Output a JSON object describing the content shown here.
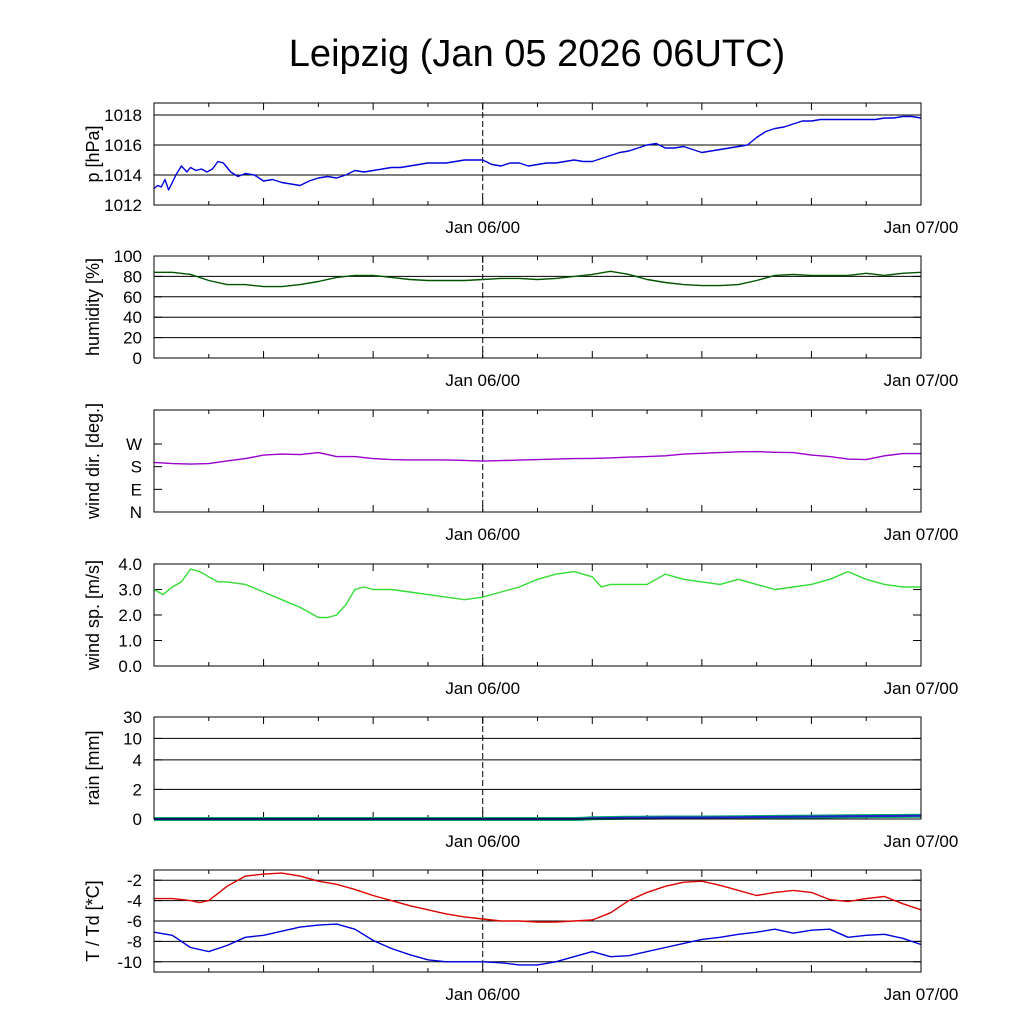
{
  "title": "Leipzig (Jan 05 2026 06UTC)",
  "chart_data": [
    {
      "type": "line",
      "ylabel": "p [hPa]",
      "ylim": [
        1012,
        1018.8
      ],
      "yticks": [
        1012,
        1014,
        1016,
        1018
      ],
      "ytick_labels": [
        "1012",
        "1014",
        "1016",
        "1018"
      ],
      "grid_y": [
        1012,
        1014,
        1016,
        1018
      ],
      "xlim": [
        0,
        42
      ],
      "xtick_labels": [
        "Jan 06/00",
        "Jan 07/00"
      ],
      "xtick_hours": [
        18,
        42
      ],
      "series": [
        {
          "color": "#0000dd",
          "x": [
            0,
            0.2,
            0.4,
            0.6,
            0.8,
            1,
            1.2,
            1.5,
            1.8,
            2,
            2.3,
            2.6,
            2.9,
            3.2,
            3.5,
            3.8,
            4.2,
            4.6,
            5,
            5.5,
            6,
            6.5,
            7,
            7.5,
            8,
            8.5,
            9,
            9.5,
            10,
            10.5,
            11,
            11.5,
            12,
            12.5,
            13,
            13.5,
            14,
            14.5,
            15,
            15.5,
            16,
            16.5,
            17,
            17.5,
            18,
            18.5,
            19,
            19.5,
            20,
            20.5,
            21,
            21.5,
            22,
            22.5,
            23,
            23.5,
            24,
            24.5,
            25,
            25.5,
            26,
            26.5,
            27,
            27.5,
            28,
            28.5,
            29,
            29.5,
            30,
            30.5,
            31,
            31.5,
            32,
            32.5,
            33,
            33.5,
            34,
            34.5,
            35,
            35.5,
            36,
            36.5,
            37,
            37.5,
            38,
            38.5,
            39,
            39.5,
            40,
            40.5,
            41,
            41.5,
            42
          ],
          "y": [
            1013.1,
            1013.3,
            1013.2,
            1013.7,
            1013.0,
            1013.5,
            1014.0,
            1014.6,
            1014.2,
            1014.5,
            1014.3,
            1014.4,
            1014.2,
            1014.4,
            1014.9,
            1014.8,
            1014.2,
            1013.9,
            1014.1,
            1014.0,
            1013.6,
            1013.7,
            1013.5,
            1013.4,
            1013.3,
            1013.6,
            1013.8,
            1013.9,
            1013.8,
            1014.0,
            1014.3,
            1014.2,
            1014.3,
            1014.4,
            1014.5,
            1014.5,
            1014.6,
            1014.7,
            1014.8,
            1014.8,
            1014.8,
            1014.9,
            1015.0,
            1015.0,
            1015.0,
            1014.7,
            1014.6,
            1014.8,
            1014.8,
            1014.6,
            1014.7,
            1014.8,
            1014.8,
            1014.9,
            1015.0,
            1014.9,
            1014.9,
            1015.1,
            1015.3,
            1015.5,
            1015.6,
            1015.8,
            1016.0,
            1016.1,
            1015.8,
            1015.8,
            1015.9,
            1015.7,
            1015.5,
            1015.6,
            1015.7,
            1015.8,
            1015.9,
            1016.0,
            1016.5,
            1016.9,
            1017.1,
            1017.2,
            1017.4,
            1017.6,
            1017.6,
            1017.7,
            1017.7,
            1017.7,
            1017.7,
            1017.7,
            1017.7,
            1017.7,
            1017.8,
            1017.8,
            1017.9,
            1017.9,
            1017.8
          ]
        }
      ]
    },
    {
      "type": "line",
      "ylabel": "humidity [%]",
      "ylim": [
        0,
        100
      ],
      "yticks": [
        0,
        20,
        40,
        60,
        80,
        100
      ],
      "ytick_labels": [
        "0",
        "20",
        "40",
        "60",
        "80",
        "100"
      ],
      "grid_y": [
        20,
        40,
        60,
        80
      ],
      "xlim": [
        0,
        42
      ],
      "xtick_labels": [
        "Jan 06/00",
        "Jan 07/00"
      ],
      "xtick_hours": [
        18,
        42
      ],
      "series": [
        {
          "color": "#005500",
          "x": [
            0,
            1,
            2,
            3,
            4,
            5,
            6,
            7,
            8,
            9,
            10,
            11,
            12,
            13,
            14,
            15,
            16,
            17,
            18,
            19,
            20,
            21,
            22,
            23,
            24,
            25,
            26,
            27,
            28,
            29,
            30,
            31,
            32,
            33,
            34,
            35,
            36,
            37,
            38,
            39,
            40,
            41,
            42
          ],
          "y": [
            84,
            84,
            82,
            76,
            72,
            72,
            70,
            70,
            72,
            75,
            79,
            81,
            81,
            79,
            77,
            76,
            76,
            76,
            77,
            78,
            78,
            77,
            78,
            80,
            82,
            85,
            82,
            77,
            74,
            72,
            71,
            71,
            72,
            76,
            81,
            82,
            81,
            81,
            81,
            83,
            81,
            83,
            84
          ]
        }
      ]
    },
    {
      "type": "line",
      "ylabel": "wind dir. [deg.]",
      "ylim": [
        0,
        405
      ],
      "yticks": [
        0,
        90,
        180,
        270
      ],
      "ytick_labels": [
        "N",
        "E",
        "S",
        "W"
      ],
      "grid_y": [],
      "xlim": [
        0,
        42
      ],
      "xtick_labels": [
        "Jan 06/00",
        "Jan 07/00"
      ],
      "xtick_hours": [
        18,
        42
      ],
      "series": [
        {
          "color": "#9900cc",
          "x": [
            0,
            1,
            2,
            3,
            4,
            5,
            6,
            7,
            8,
            9,
            10,
            11,
            12,
            13,
            14,
            15,
            16,
            17,
            18,
            19,
            20,
            21,
            22,
            23,
            24,
            25,
            26,
            27,
            28,
            29,
            30,
            31,
            32,
            33,
            34,
            35,
            36,
            37,
            38,
            39,
            40,
            41,
            42
          ],
          "y": [
            197,
            192,
            190,
            192,
            203,
            212,
            226,
            230,
            228,
            236,
            220,
            220,
            212,
            208,
            207,
            207,
            207,
            205,
            202,
            204,
            206,
            208,
            210,
            212,
            213,
            215,
            218,
            220,
            223,
            230,
            233,
            236,
            239,
            240,
            237,
            236,
            226,
            220,
            210,
            208,
            223,
            232,
            232
          ]
        }
      ]
    },
    {
      "type": "line",
      "ylabel": "wind sp. [m/s]",
      "ylim": [
        0,
        4
      ],
      "yticks": [
        0,
        1,
        2,
        3,
        4
      ],
      "ytick_labels": [
        "0.0",
        "1.0",
        "2.0",
        "3.0",
        "4.0"
      ],
      "grid_y": [],
      "xlim": [
        0,
        42
      ],
      "xtick_labels": [
        "Jan 06/00",
        "Jan 07/00"
      ],
      "xtick_hours": [
        18,
        42
      ],
      "series": [
        {
          "color": "#33dd33",
          "x": [
            0,
            0.5,
            1,
            1.5,
            2,
            2.5,
            3,
            3.5,
            4,
            5,
            6,
            7,
            8,
            9,
            9.5,
            10,
            10.5,
            11,
            11.5,
            12,
            13,
            14,
            15,
            16,
            17,
            18,
            19,
            20,
            21,
            22,
            23,
            24,
            24.5,
            25,
            26,
            27,
            28,
            29,
            30,
            31,
            32,
            33,
            34,
            35,
            36,
            37,
            38,
            39,
            40,
            41,
            42
          ],
          "y": [
            3.0,
            2.8,
            3.1,
            3.3,
            3.8,
            3.7,
            3.5,
            3.3,
            3.3,
            3.2,
            2.9,
            2.6,
            2.3,
            1.9,
            1.9,
            2.0,
            2.4,
            3.0,
            3.1,
            3.0,
            3.0,
            2.9,
            2.8,
            2.7,
            2.6,
            2.7,
            2.9,
            3.1,
            3.4,
            3.6,
            3.7,
            3.5,
            3.1,
            3.2,
            3.2,
            3.2,
            3.6,
            3.4,
            3.3,
            3.2,
            3.4,
            3.2,
            3.0,
            3.1,
            3.2,
            3.4,
            3.7,
            3.4,
            3.2,
            3.1,
            3.1
          ]
        }
      ]
    },
    {
      "type": "area",
      "ylabel": "rain [mm]",
      "ylim": [
        0,
        30
      ],
      "yticks": [
        0,
        2,
        4,
        10,
        30
      ],
      "ytick_labels": [
        "0",
        "2",
        "4",
        "10",
        "30"
      ],
      "grid_y": [
        2,
        4,
        10,
        30
      ],
      "xlim": [
        0,
        42
      ],
      "xtick_labels": [
        "Jan 06/00",
        "Jan 07/00"
      ],
      "xtick_hours": [
        18,
        42
      ],
      "series": [
        {
          "color": "#2222cc",
          "x": [
            0,
            23,
            23.5,
            24,
            26,
            28,
            30,
            32,
            34,
            36,
            38,
            40,
            42
          ],
          "y": [
            0,
            0,
            0.02,
            0.05,
            0.08,
            0.1,
            0.1,
            0.12,
            0.14,
            0.16,
            0.18,
            0.2,
            0.22
          ]
        }
      ]
    },
    {
      "type": "line",
      "ylabel": "T / Td [*C]",
      "ylim": [
        -11,
        -1
      ],
      "yticks": [
        -10,
        -8,
        -6,
        -4,
        -2
      ],
      "ytick_labels": [
        "-10",
        "-8",
        "-6",
        "-4",
        "-2"
      ],
      "grid_y": [
        -10,
        -8,
        -6,
        -4,
        -2
      ],
      "xlim": [
        0,
        42
      ],
      "xtick_labels": [
        "Jan 06/00",
        "Jan 07/00"
      ],
      "xtick_hours": [
        18,
        42
      ],
      "series": [
        {
          "color": "#dd0000",
          "x": [
            0,
            1,
            2,
            2.5,
            3,
            4,
            5,
            6,
            7,
            8,
            9,
            10,
            11,
            12,
            13,
            14,
            15,
            16,
            17,
            18,
            19,
            20,
            21,
            22,
            23,
            24,
            25,
            26,
            27,
            28,
            29,
            30,
            31,
            32,
            33,
            34,
            35,
            36,
            37,
            38,
            39,
            40,
            41,
            42
          ],
          "y": [
            -3.8,
            -3.8,
            -4.0,
            -4.2,
            -4.0,
            -2.6,
            -1.6,
            -1.4,
            -1.3,
            -1.6,
            -2.1,
            -2.4,
            -2.9,
            -3.5,
            -4.0,
            -4.5,
            -4.9,
            -5.3,
            -5.6,
            -5.8,
            -6.0,
            -6.0,
            -6.1,
            -6.1,
            -6.0,
            -5.9,
            -5.2,
            -4.0,
            -3.2,
            -2.6,
            -2.2,
            -2.1,
            -2.5,
            -3.0,
            -3.5,
            -3.2,
            -3.0,
            -3.2,
            -3.9,
            -4.1,
            -3.8,
            -3.6,
            -4.3,
            -4.9
          ]
        },
        {
          "color": "#0000dd",
          "x": [
            0,
            1,
            2,
            3,
            4,
            5,
            6,
            7,
            8,
            9,
            10,
            11,
            12,
            13,
            14,
            15,
            16,
            17,
            18,
            19,
            20,
            21,
            22,
            23,
            24,
            25,
            26,
            27,
            28,
            29,
            30,
            31,
            32,
            33,
            34,
            35,
            36,
            37,
            38,
            39,
            40,
            41,
            42
          ],
          "y": [
            -7.1,
            -7.4,
            -8.6,
            -9.0,
            -8.4,
            -7.6,
            -7.4,
            -7.0,
            -6.6,
            -6.4,
            -6.3,
            -6.8,
            -7.9,
            -8.7,
            -9.3,
            -9.8,
            -10.0,
            -10.0,
            -10.0,
            -10.1,
            -10.3,
            -10.3,
            -10.0,
            -9.5,
            -9.0,
            -9.5,
            -9.4,
            -9.0,
            -8.6,
            -8.2,
            -7.8,
            -7.6,
            -7.3,
            -7.1,
            -6.8,
            -7.2,
            -6.9,
            -6.8,
            -7.6,
            -7.4,
            -7.3,
            -7.7,
            -8.3
          ]
        }
      ]
    }
  ]
}
